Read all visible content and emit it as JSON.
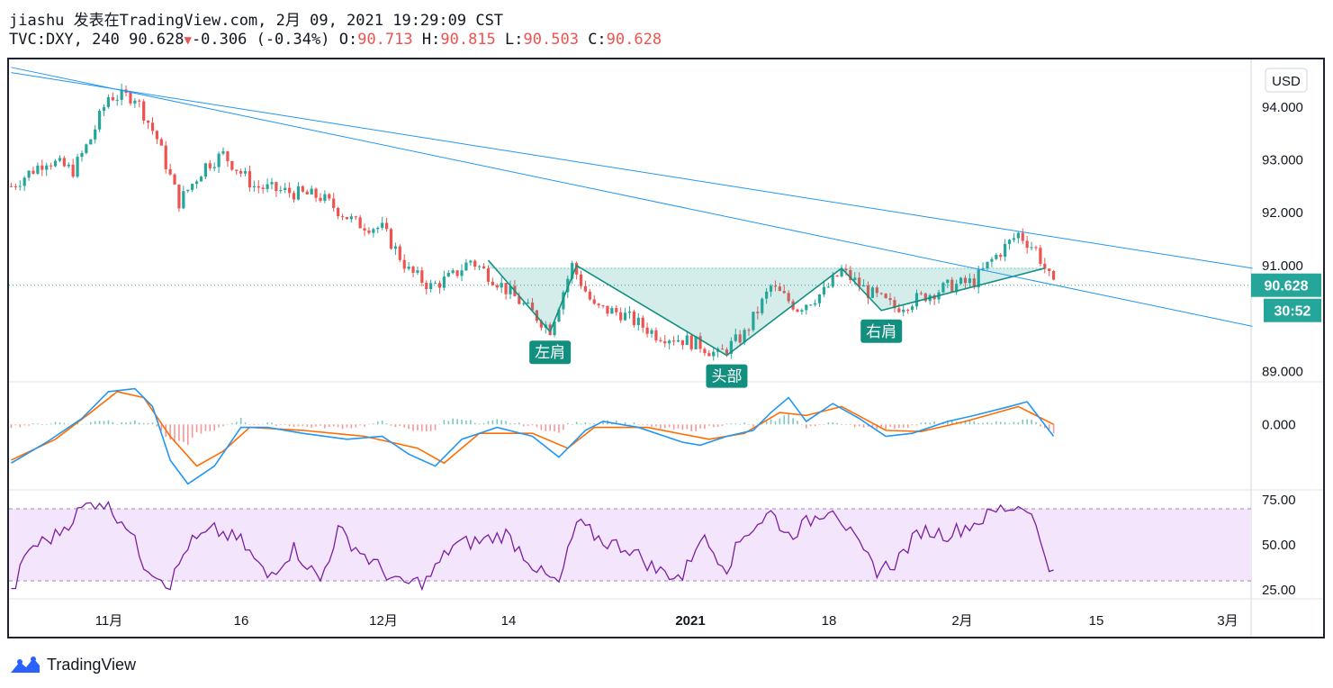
{
  "header": {
    "line1": "jiashu 发表在TradingView.com, 2月 09, 2021 19:29:09 CST",
    "symbol": "TVC:DXY, 240",
    "last": "90.628",
    "change": "-0.306 (-0.34%)",
    "o_label": "O:",
    "o_val": "90.713",
    "h_label": "H:",
    "h_val": "90.815",
    "l_label": "L:",
    "l_val": "90.503",
    "c_label": "C:",
    "c_val": "90.628"
  },
  "branding": {
    "name": "TradingView"
  },
  "colors": {
    "up": "#26a69a",
    "down": "#ef5350",
    "trendline": "#2196f3",
    "pattern": "#138f80",
    "macd": "#2196f3",
    "signal": "#ff6d00",
    "rsi": "#7b1fa2",
    "rsi_band": "#f3e5fb"
  },
  "chart_data": {
    "type": "candlestick",
    "symbol": "TVC:DXY",
    "interval": "240",
    "currency_label": "USD",
    "price_label": "90.628",
    "countdown_label": "30:52",
    "price_ticks": [
      "94.000",
      "93.000",
      "92.000",
      "91.000",
      "89.000"
    ],
    "price_range": [
      88.8,
      94.9
    ],
    "x_labels": [
      "11月",
      "16",
      "12月",
      "14",
      "2021",
      "18",
      "2月",
      "15",
      "3月"
    ],
    "price_path": [
      {
        "i": 0,
        "p": 92.5
      },
      {
        "i": 8,
        "p": 93.0
      },
      {
        "i": 14,
        "p": 92.8
      },
      {
        "i": 18,
        "p": 93.4
      },
      {
        "i": 22,
        "p": 94.2
      },
      {
        "i": 28,
        "p": 94.2
      },
      {
        "i": 33,
        "p": 93.4
      },
      {
        "i": 38,
        "p": 92.2
      },
      {
        "i": 44,
        "p": 92.9
      },
      {
        "i": 48,
        "p": 93.1
      },
      {
        "i": 55,
        "p": 92.5
      },
      {
        "i": 62,
        "p": 92.4
      },
      {
        "i": 70,
        "p": 92.3
      },
      {
        "i": 78,
        "p": 91.8
      },
      {
        "i": 84,
        "p": 91.7
      },
      {
        "i": 90,
        "p": 90.9
      },
      {
        "i": 95,
        "p": 90.6
      },
      {
        "i": 100,
        "p": 90.8
      },
      {
        "i": 104,
        "p": 91.1
      },
      {
        "i": 110,
        "p": 90.7
      },
      {
        "i": 118,
        "p": 90.1
      },
      {
        "i": 122,
        "p": 89.8
      },
      {
        "i": 127,
        "p": 91.0
      },
      {
        "i": 132,
        "p": 90.2
      },
      {
        "i": 138,
        "p": 90.1
      },
      {
        "i": 146,
        "p": 89.7
      },
      {
        "i": 152,
        "p": 89.6
      },
      {
        "i": 156,
        "p": 89.5
      },
      {
        "i": 160,
        "p": 89.3
      },
      {
        "i": 166,
        "p": 89.7
      },
      {
        "i": 172,
        "p": 90.6
      },
      {
        "i": 178,
        "p": 90.2
      },
      {
        "i": 184,
        "p": 90.5
      },
      {
        "i": 188,
        "p": 90.9
      },
      {
        "i": 194,
        "p": 90.5
      },
      {
        "i": 200,
        "p": 90.2
      },
      {
        "i": 206,
        "p": 90.4
      },
      {
        "i": 212,
        "p": 90.6
      },
      {
        "i": 218,
        "p": 90.7
      },
      {
        "i": 222,
        "p": 91.1
      },
      {
        "i": 228,
        "p": 91.6
      },
      {
        "i": 232,
        "p": 91.3
      },
      {
        "i": 236,
        "p": 90.6
      }
    ],
    "pattern_points": [
      {
        "i": 108,
        "p": 91.1
      },
      {
        "i": 122,
        "p": 89.75
      },
      {
        "i": 128,
        "p": 91.0
      },
      {
        "i": 162,
        "p": 89.3
      },
      {
        "i": 188,
        "p": 90.95
      },
      {
        "i": 197,
        "p": 90.15
      },
      {
        "i": 234,
        "p": 90.95
      }
    ],
    "neckline": 90.95,
    "pattern_labels": [
      {
        "text": "左肩",
        "i": 122,
        "p": 89.75
      },
      {
        "text": "头部",
        "i": 162,
        "p": 89.3
      },
      {
        "text": "右肩",
        "i": 197,
        "p": 90.15
      }
    ],
    "trendlines": [
      {
        "from": {
          "i": 0,
          "p": 94.75
        },
        "to": {
          "i": 281,
          "p": 89.85
        }
      },
      {
        "from": {
          "i": 0,
          "p": 94.65
        },
        "to": {
          "i": 281,
          "p": 90.95
        }
      }
    ],
    "macd": {
      "tick": "0.000",
      "range": [
        -1.1,
        0.7
      ],
      "line": [
        {
          "i": 0,
          "v": -0.65
        },
        {
          "i": 8,
          "v": -0.3
        },
        {
          "i": 16,
          "v": 0.1
        },
        {
          "i": 22,
          "v": 0.55
        },
        {
          "i": 28,
          "v": 0.6
        },
        {
          "i": 32,
          "v": 0.3
        },
        {
          "i": 36,
          "v": -0.6
        },
        {
          "i": 40,
          "v": -1.0
        },
        {
          "i": 46,
          "v": -0.7
        },
        {
          "i": 52,
          "v": -0.05
        },
        {
          "i": 58,
          "v": -0.05
        },
        {
          "i": 66,
          "v": -0.15
        },
        {
          "i": 76,
          "v": -0.25
        },
        {
          "i": 84,
          "v": -0.2
        },
        {
          "i": 90,
          "v": -0.5
        },
        {
          "i": 96,
          "v": -0.7
        },
        {
          "i": 102,
          "v": -0.25
        },
        {
          "i": 110,
          "v": -0.05
        },
        {
          "i": 118,
          "v": -0.2
        },
        {
          "i": 124,
          "v": -0.55
        },
        {
          "i": 130,
          "v": -0.1
        },
        {
          "i": 134,
          "v": 0.05
        },
        {
          "i": 142,
          "v": -0.05
        },
        {
          "i": 152,
          "v": -0.3
        },
        {
          "i": 156,
          "v": -0.35
        },
        {
          "i": 162,
          "v": -0.2
        },
        {
          "i": 168,
          "v": -0.1
        },
        {
          "i": 172,
          "v": 0.2
        },
        {
          "i": 176,
          "v": 0.45
        },
        {
          "i": 180,
          "v": 0.05
        },
        {
          "i": 186,
          "v": 0.35
        },
        {
          "i": 192,
          "v": 0.1
        },
        {
          "i": 198,
          "v": -0.2
        },
        {
          "i": 204,
          "v": -0.15
        },
        {
          "i": 212,
          "v": 0.05
        },
        {
          "i": 218,
          "v": 0.15
        },
        {
          "i": 226,
          "v": 0.3
        },
        {
          "i": 230,
          "v": 0.38
        },
        {
          "i": 236,
          "v": -0.2
        }
      ],
      "signal": [
        {
          "i": 0,
          "v": -0.6
        },
        {
          "i": 10,
          "v": -0.25
        },
        {
          "i": 18,
          "v": 0.2
        },
        {
          "i": 24,
          "v": 0.55
        },
        {
          "i": 30,
          "v": 0.45
        },
        {
          "i": 36,
          "v": -0.2
        },
        {
          "i": 42,
          "v": -0.7
        },
        {
          "i": 48,
          "v": -0.45
        },
        {
          "i": 54,
          "v": -0.05
        },
        {
          "i": 66,
          "v": -0.1
        },
        {
          "i": 80,
          "v": -0.2
        },
        {
          "i": 92,
          "v": -0.4
        },
        {
          "i": 98,
          "v": -0.65
        },
        {
          "i": 106,
          "v": -0.15
        },
        {
          "i": 118,
          "v": -0.15
        },
        {
          "i": 126,
          "v": -0.4
        },
        {
          "i": 132,
          "v": -0.05
        },
        {
          "i": 144,
          "v": -0.05
        },
        {
          "i": 158,
          "v": -0.25
        },
        {
          "i": 166,
          "v": -0.15
        },
        {
          "i": 174,
          "v": 0.2
        },
        {
          "i": 180,
          "v": 0.15
        },
        {
          "i": 188,
          "v": 0.3
        },
        {
          "i": 198,
          "v": -0.1
        },
        {
          "i": 206,
          "v": -0.12
        },
        {
          "i": 216,
          "v": 0.05
        },
        {
          "i": 228,
          "v": 0.3
        },
        {
          "i": 236,
          "v": 0.0
        }
      ]
    },
    "rsi": {
      "ticks": [
        "75.00",
        "50.00",
        "25.00"
      ],
      "band": [
        30,
        70
      ],
      "range": [
        20,
        80
      ],
      "line": [
        {
          "i": 0,
          "v": 22
        },
        {
          "i": 4,
          "v": 48
        },
        {
          "i": 10,
          "v": 55
        },
        {
          "i": 16,
          "v": 70
        },
        {
          "i": 20,
          "v": 75
        },
        {
          "i": 26,
          "v": 62
        },
        {
          "i": 30,
          "v": 40
        },
        {
          "i": 36,
          "v": 28
        },
        {
          "i": 40,
          "v": 50
        },
        {
          "i": 46,
          "v": 58
        },
        {
          "i": 52,
          "v": 52
        },
        {
          "i": 58,
          "v": 32
        },
        {
          "i": 64,
          "v": 48
        },
        {
          "i": 70,
          "v": 30
        },
        {
          "i": 74,
          "v": 58
        },
        {
          "i": 80,
          "v": 44
        },
        {
          "i": 88,
          "v": 28
        },
        {
          "i": 94,
          "v": 30
        },
        {
          "i": 100,
          "v": 50
        },
        {
          "i": 106,
          "v": 52
        },
        {
          "i": 112,
          "v": 56
        },
        {
          "i": 120,
          "v": 34
        },
        {
          "i": 124,
          "v": 28
        },
        {
          "i": 128,
          "v": 62
        },
        {
          "i": 134,
          "v": 52
        },
        {
          "i": 140,
          "v": 48
        },
        {
          "i": 146,
          "v": 36
        },
        {
          "i": 152,
          "v": 32
        },
        {
          "i": 156,
          "v": 55
        },
        {
          "i": 162,
          "v": 38
        },
        {
          "i": 166,
          "v": 56
        },
        {
          "i": 172,
          "v": 68
        },
        {
          "i": 176,
          "v": 55
        },
        {
          "i": 180,
          "v": 62
        },
        {
          "i": 186,
          "v": 72
        },
        {
          "i": 192,
          "v": 48
        },
        {
          "i": 196,
          "v": 36
        },
        {
          "i": 200,
          "v": 40
        },
        {
          "i": 206,
          "v": 58
        },
        {
          "i": 212,
          "v": 56
        },
        {
          "i": 218,
          "v": 62
        },
        {
          "i": 224,
          "v": 70
        },
        {
          "i": 230,
          "v": 72
        },
        {
          "i": 234,
          "v": 46
        },
        {
          "i": 236,
          "v": 33
        }
      ]
    }
  }
}
